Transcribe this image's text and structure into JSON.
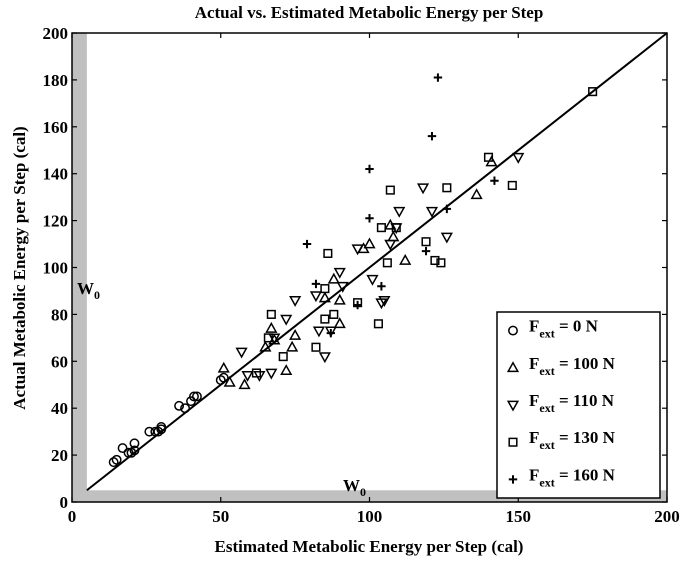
{
  "chart_data": {
    "type": "scatter",
    "title": "Actual vs. Estimated Metabolic Energy per Step",
    "xlabel": "Estimated Metabolic Energy per Step (cal)",
    "ylabel": "Actual Metabolic Energy per Step (cal)",
    "xlim": [
      0,
      200
    ],
    "ylim": [
      0,
      200
    ],
    "xticks": [
      "0",
      "50",
      "100",
      "150",
      "200"
    ],
    "yticks": [
      "0",
      "20",
      "40",
      "60",
      "80",
      "100",
      "120",
      "140",
      "160",
      "180",
      "200"
    ],
    "grid": false,
    "legend_position": "bottom-right",
    "w0_value": 5,
    "w0_label": {
      "base": "W",
      "sub": "0"
    },
    "fit_line": {
      "x": [
        5,
        200
      ],
      "y": [
        5,
        200
      ]
    },
    "series": [
      {
        "legend_base": "F",
        "legend_sub": "ext",
        "legend_rest": " = 0 N",
        "marker": "circle",
        "points": [
          [
            14,
            17
          ],
          [
            15,
            18
          ],
          [
            17,
            23
          ],
          [
            19,
            21
          ],
          [
            20,
            21
          ],
          [
            21,
            22
          ],
          [
            21,
            25
          ],
          [
            26,
            30
          ],
          [
            28,
            30
          ],
          [
            29,
            30
          ],
          [
            30,
            32
          ],
          [
            30,
            31
          ],
          [
            36,
            41
          ],
          [
            38,
            40
          ],
          [
            40,
            43
          ],
          [
            41,
            45
          ],
          [
            42,
            45
          ],
          [
            50,
            52
          ],
          [
            51,
            53
          ]
        ]
      },
      {
        "legend_base": "F",
        "legend_sub": "ext",
        "legend_rest": " = 100 N",
        "marker": "triangle-up",
        "points": [
          [
            51,
            57
          ],
          [
            53,
            51
          ],
          [
            58,
            50
          ],
          [
            65,
            66
          ],
          [
            67,
            74
          ],
          [
            68,
            69
          ],
          [
            72,
            56
          ],
          [
            74,
            66
          ],
          [
            75,
            71
          ],
          [
            85,
            87
          ],
          [
            88,
            95
          ],
          [
            90,
            86
          ],
          [
            90,
            76
          ],
          [
            98,
            108
          ],
          [
            100,
            110
          ],
          [
            107,
            118
          ],
          [
            108,
            113
          ],
          [
            112,
            103
          ],
          [
            136,
            131
          ],
          [
            141,
            145
          ]
        ]
      },
      {
        "legend_base": "F",
        "legend_sub": "ext",
        "legend_rest": " = 110 N",
        "marker": "triangle-down",
        "points": [
          [
            57,
            64
          ],
          [
            59,
            54
          ],
          [
            63,
            54
          ],
          [
            67,
            55
          ],
          [
            68,
            70
          ],
          [
            72,
            78
          ],
          [
            75,
            86
          ],
          [
            82,
            88
          ],
          [
            83,
            73
          ],
          [
            85,
            62
          ],
          [
            87,
            73
          ],
          [
            90,
            98
          ],
          [
            91,
            92
          ],
          [
            96,
            108
          ],
          [
            101,
            95
          ],
          [
            104,
            85
          ],
          [
            105,
            86
          ],
          [
            107,
            110
          ],
          [
            109,
            117
          ],
          [
            110,
            124
          ],
          [
            118,
            134
          ],
          [
            121,
            124
          ],
          [
            126,
            113
          ],
          [
            150,
            147
          ]
        ]
      },
      {
        "legend_base": "F",
        "legend_sub": "ext",
        "legend_rest": " = 130 N",
        "marker": "square",
        "points": [
          [
            62,
            55
          ],
          [
            66,
            70
          ],
          [
            67,
            80
          ],
          [
            71,
            62
          ],
          [
            82,
            66
          ],
          [
            85,
            78
          ],
          [
            85,
            91
          ],
          [
            86,
            106
          ],
          [
            88,
            80
          ],
          [
            96,
            85
          ],
          [
            103,
            76
          ],
          [
            104,
            117
          ],
          [
            106,
            102
          ],
          [
            107,
            133
          ],
          [
            109,
            117
          ],
          [
            119,
            111
          ],
          [
            122,
            103
          ],
          [
            124,
            102
          ],
          [
            126,
            134
          ],
          [
            140,
            147
          ],
          [
            148,
            135
          ],
          [
            175,
            175
          ]
        ]
      },
      {
        "legend_base": "F",
        "legend_sub": "ext",
        "legend_rest": " = 160 N",
        "marker": "plus",
        "points": [
          [
            79,
            110
          ],
          [
            82,
            93
          ],
          [
            87,
            72
          ],
          [
            96,
            84
          ],
          [
            100,
            142
          ],
          [
            100,
            121
          ],
          [
            104,
            92
          ],
          [
            119,
            107
          ],
          [
            121,
            156
          ],
          [
            123,
            181
          ],
          [
            126,
            125
          ],
          [
            142,
            137
          ]
        ]
      }
    ]
  }
}
